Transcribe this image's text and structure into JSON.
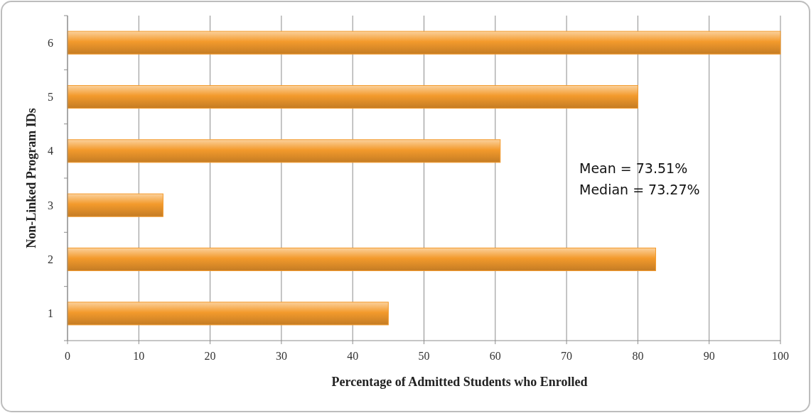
{
  "chart_data": {
    "type": "bar",
    "orientation": "horizontal",
    "xlabel": "Percentage of Admitted Students who Enrolled",
    "ylabel": "Non-Linked Program IDs",
    "categories": [
      "6",
      "5",
      "4",
      "3",
      "2",
      "1"
    ],
    "values": [
      100,
      80,
      60.7,
      13.4,
      82.5,
      45
    ],
    "color": "#f39a2c",
    "xlim": [
      0,
      100
    ],
    "xticks": [
      0,
      10,
      20,
      30,
      40,
      50,
      60,
      70,
      80,
      90,
      100
    ],
    "grid": "x",
    "annotations": [
      "Mean = 73.51%",
      "Median = 73.27%"
    ]
  }
}
